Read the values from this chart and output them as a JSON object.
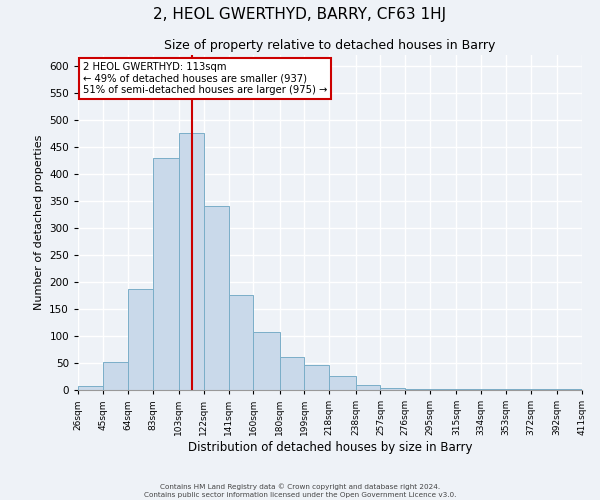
{
  "title": "2, HEOL GWERTHYD, BARRY, CF63 1HJ",
  "subtitle": "Size of property relative to detached houses in Barry",
  "xlabel": "Distribution of detached houses by size in Barry",
  "ylabel": "Number of detached properties",
  "bin_edges": [
    26,
    45,
    64,
    83,
    103,
    122,
    141,
    160,
    180,
    199,
    218,
    238,
    257,
    276,
    295,
    315,
    334,
    353,
    372,
    392,
    411
  ],
  "bar_heights": [
    8,
    52,
    187,
    430,
    475,
    340,
    175,
    107,
    62,
    46,
    25,
    10,
    3,
    2,
    2,
    1,
    1,
    1,
    1,
    1
  ],
  "bar_color": "#c9d9ea",
  "bar_edge_color": "#7aaec8",
  "vline_x": 113,
  "vline_color": "#cc0000",
  "ylim": [
    0,
    620
  ],
  "annotation_line1": "2 HEOL GWERTHYD: 113sqm",
  "annotation_line2": "← 49% of detached houses are smaller (937)",
  "annotation_line3": "51% of semi-detached houses are larger (975) →",
  "annotation_border_color": "#cc0000",
  "footer_line1": "Contains HM Land Registry data © Crown copyright and database right 2024.",
  "footer_line2": "Contains public sector information licensed under the Open Government Licence v3.0.",
  "bg_color": "#eef2f7",
  "grid_color": "#ffffff",
  "title_fontsize": 11,
  "subtitle_fontsize": 9,
  "tick_labels": [
    "26sqm",
    "45sqm",
    "64sqm",
    "83sqm",
    "103sqm",
    "122sqm",
    "141sqm",
    "160sqm",
    "180sqm",
    "199sqm",
    "218sqm",
    "238sqm",
    "257sqm",
    "276sqm",
    "295sqm",
    "315sqm",
    "334sqm",
    "353sqm",
    "372sqm",
    "392sqm",
    "411sqm"
  ]
}
